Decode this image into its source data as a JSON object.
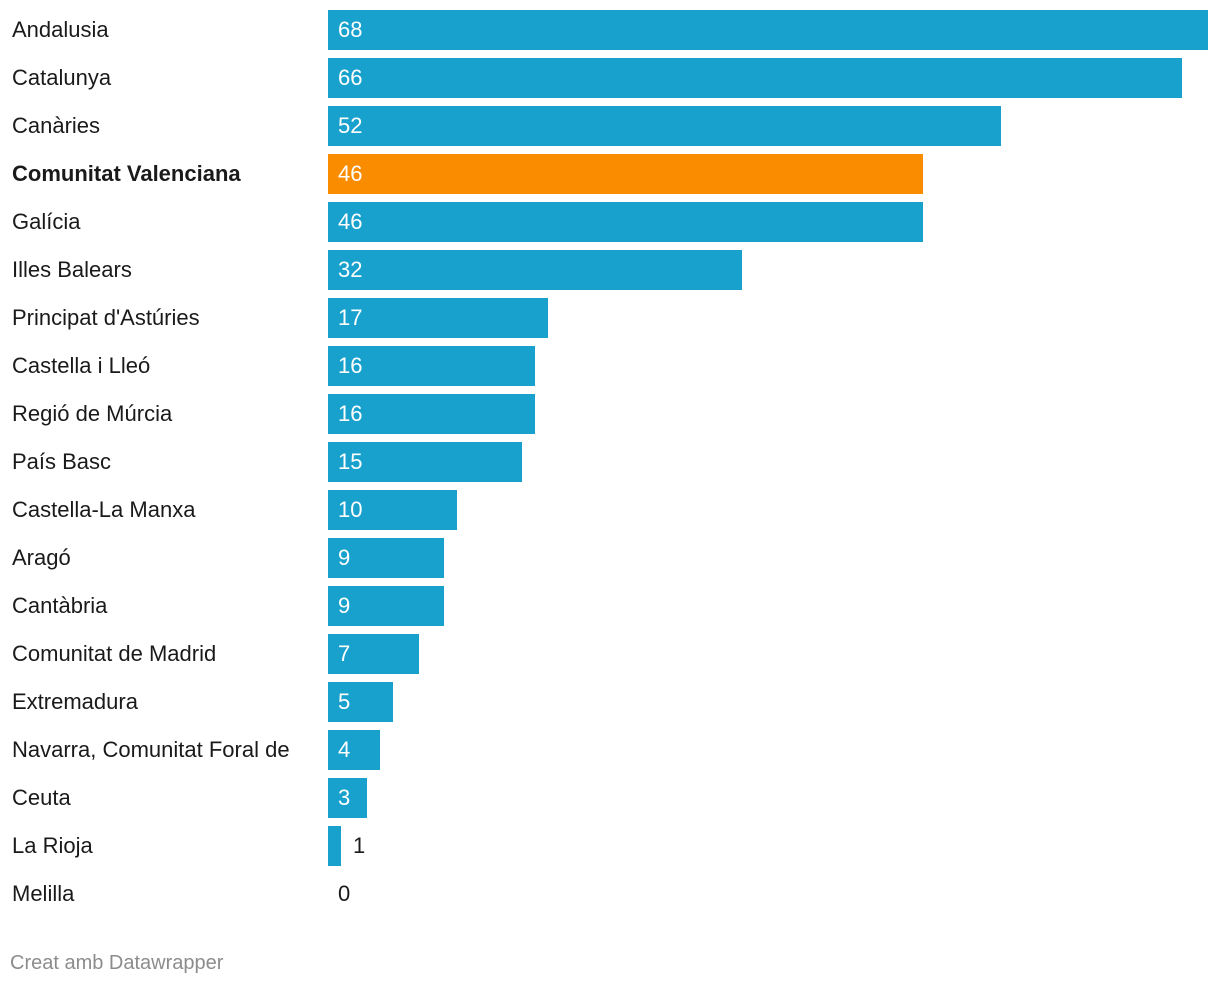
{
  "chart_data": {
    "type": "bar",
    "orientation": "horizontal",
    "categories": [
      "Andalusia",
      "Catalunya",
      "Canàries",
      "Comunitat Valenciana",
      "Galícia",
      "Illes Balears",
      "Principat d'Astúries",
      "Castella i Lleó",
      "Regió de Múrcia",
      "País Basc",
      "Castella-La Manxa",
      "Aragó",
      "Cantàbria",
      "Comunitat de Madrid",
      "Extremadura",
      "Navarra, Comunitat Foral de",
      "Ceuta",
      "La Rioja",
      "Melilla"
    ],
    "values": [
      68,
      66,
      52,
      46,
      46,
      32,
      17,
      16,
      16,
      15,
      10,
      9,
      9,
      7,
      5,
      4,
      3,
      1,
      0
    ],
    "highlight": "Comunitat Valenciana",
    "colors": {
      "default": "#18a1cd",
      "highlight": "#fa8c00"
    },
    "xlim": [
      0,
      68
    ],
    "title": "",
    "xlabel": "",
    "ylabel": ""
  },
  "footer": {
    "credit": "Creat amb Datawrapper"
  }
}
